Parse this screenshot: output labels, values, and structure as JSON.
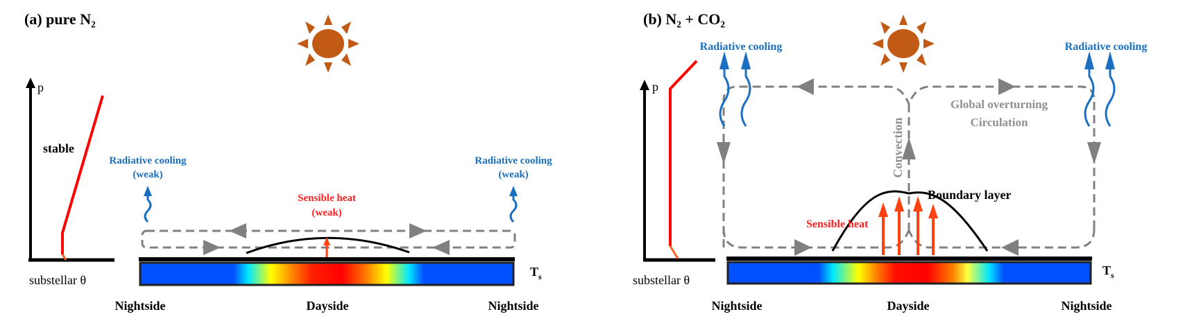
{
  "colors": {
    "sun": "#c05a14",
    "profile": "#ff0000",
    "radiative": "#1a6fc0",
    "sensible": "#ff2020",
    "sensible_arrow": "#ff4010",
    "circulation": "#808080",
    "surface_cold": "#0050ff",
    "surface_hot": "#ff0000"
  },
  "panel_a": {
    "title": "(a)  pure N₂",
    "axis_p": "p",
    "axis_x": "substellar θ",
    "stability": "stable",
    "radiative_left": "Radiative cooling",
    "radiative_left_sub": "(weak)",
    "radiative_right": "Radiative cooling",
    "radiative_right_sub": "(weak)",
    "sensible": "Sensible heat",
    "sensible_sub": "(weak)",
    "ts": "T",
    "ts_sub": "s",
    "regions": [
      "Nightside",
      "Dayside",
      "Nightside"
    ]
  },
  "panel_b": {
    "title": "(b)  N₂ + CO₂",
    "axis_p": "p",
    "axis_x": "substellar θ",
    "radiative_left": "Radiative cooling",
    "radiative_right": "Radiative cooling",
    "circulation_1": "Global overturning",
    "circulation_2": "Circulation",
    "convection": "Convection",
    "boundary_layer": "Boundary layer",
    "sensible": "Sensible heat",
    "ts": "T",
    "ts_sub": "s",
    "regions": [
      "Nightside",
      "Dayside",
      "Nightside"
    ]
  }
}
